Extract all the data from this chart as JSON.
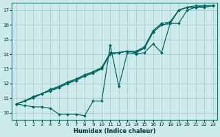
{
  "bg_color": "#cceaea",
  "grid_color": "#aacccc",
  "line_color": "#006666",
  "line_width": 0.9,
  "marker": "D",
  "marker_size": 2.0,
  "xlabel": "Humidex (Indice chaleur)",
  "xlim": [
    -0.5,
    23.5
  ],
  "ylim": [
    9.5,
    17.5
  ],
  "xticks": [
    0,
    1,
    2,
    3,
    4,
    5,
    6,
    7,
    8,
    9,
    10,
    11,
    12,
    13,
    14,
    15,
    16,
    17,
    18,
    19,
    20,
    21,
    22,
    23
  ],
  "yticks": [
    10,
    11,
    12,
    13,
    14,
    15,
    16,
    17
  ],
  "line_bundle_x": [
    0,
    1,
    2,
    3,
    4,
    5,
    6,
    7,
    8,
    9,
    10,
    11,
    12,
    13,
    14,
    15,
    16,
    17,
    18,
    19,
    20,
    21,
    22,
    23
  ],
  "line1": [
    10.6,
    10.8,
    11.1,
    11.3,
    11.6,
    11.8,
    12.1,
    12.3,
    12.6,
    12.8,
    13.1,
    14.1,
    14.1,
    14.2,
    14.2,
    14.5,
    15.6,
    16.1,
    16.2,
    17.0,
    17.2,
    17.3,
    17.3,
    17.3
  ],
  "line2": [
    10.6,
    10.8,
    11.1,
    11.3,
    11.5,
    11.8,
    12.0,
    12.3,
    12.5,
    12.8,
    13.0,
    14.0,
    14.1,
    14.2,
    14.2,
    14.4,
    15.5,
    16.0,
    16.1,
    17.0,
    17.2,
    17.2,
    17.3,
    17.3
  ],
  "line3": [
    10.6,
    10.8,
    11.0,
    11.3,
    11.5,
    11.7,
    12.0,
    12.2,
    12.5,
    12.7,
    13.0,
    14.0,
    14.1,
    14.2,
    14.1,
    14.4,
    15.5,
    16.0,
    16.1,
    17.0,
    17.2,
    17.2,
    17.3,
    17.3
  ],
  "line_dip_x": [
    0,
    1,
    2,
    3,
    4,
    5,
    6,
    7,
    8,
    9,
    10,
    11,
    12,
    13,
    14,
    15,
    16,
    17,
    18,
    19,
    20,
    21,
    22,
    23
  ],
  "line_dip": [
    10.6,
    10.5,
    10.4,
    10.4,
    10.3,
    9.9,
    9.9,
    9.9,
    9.8,
    10.8,
    10.8,
    14.6,
    11.8,
    14.1,
    14.0,
    14.1,
    14.7,
    14.1,
    16.1,
    16.1,
    17.0,
    17.2,
    17.2,
    17.3
  ]
}
